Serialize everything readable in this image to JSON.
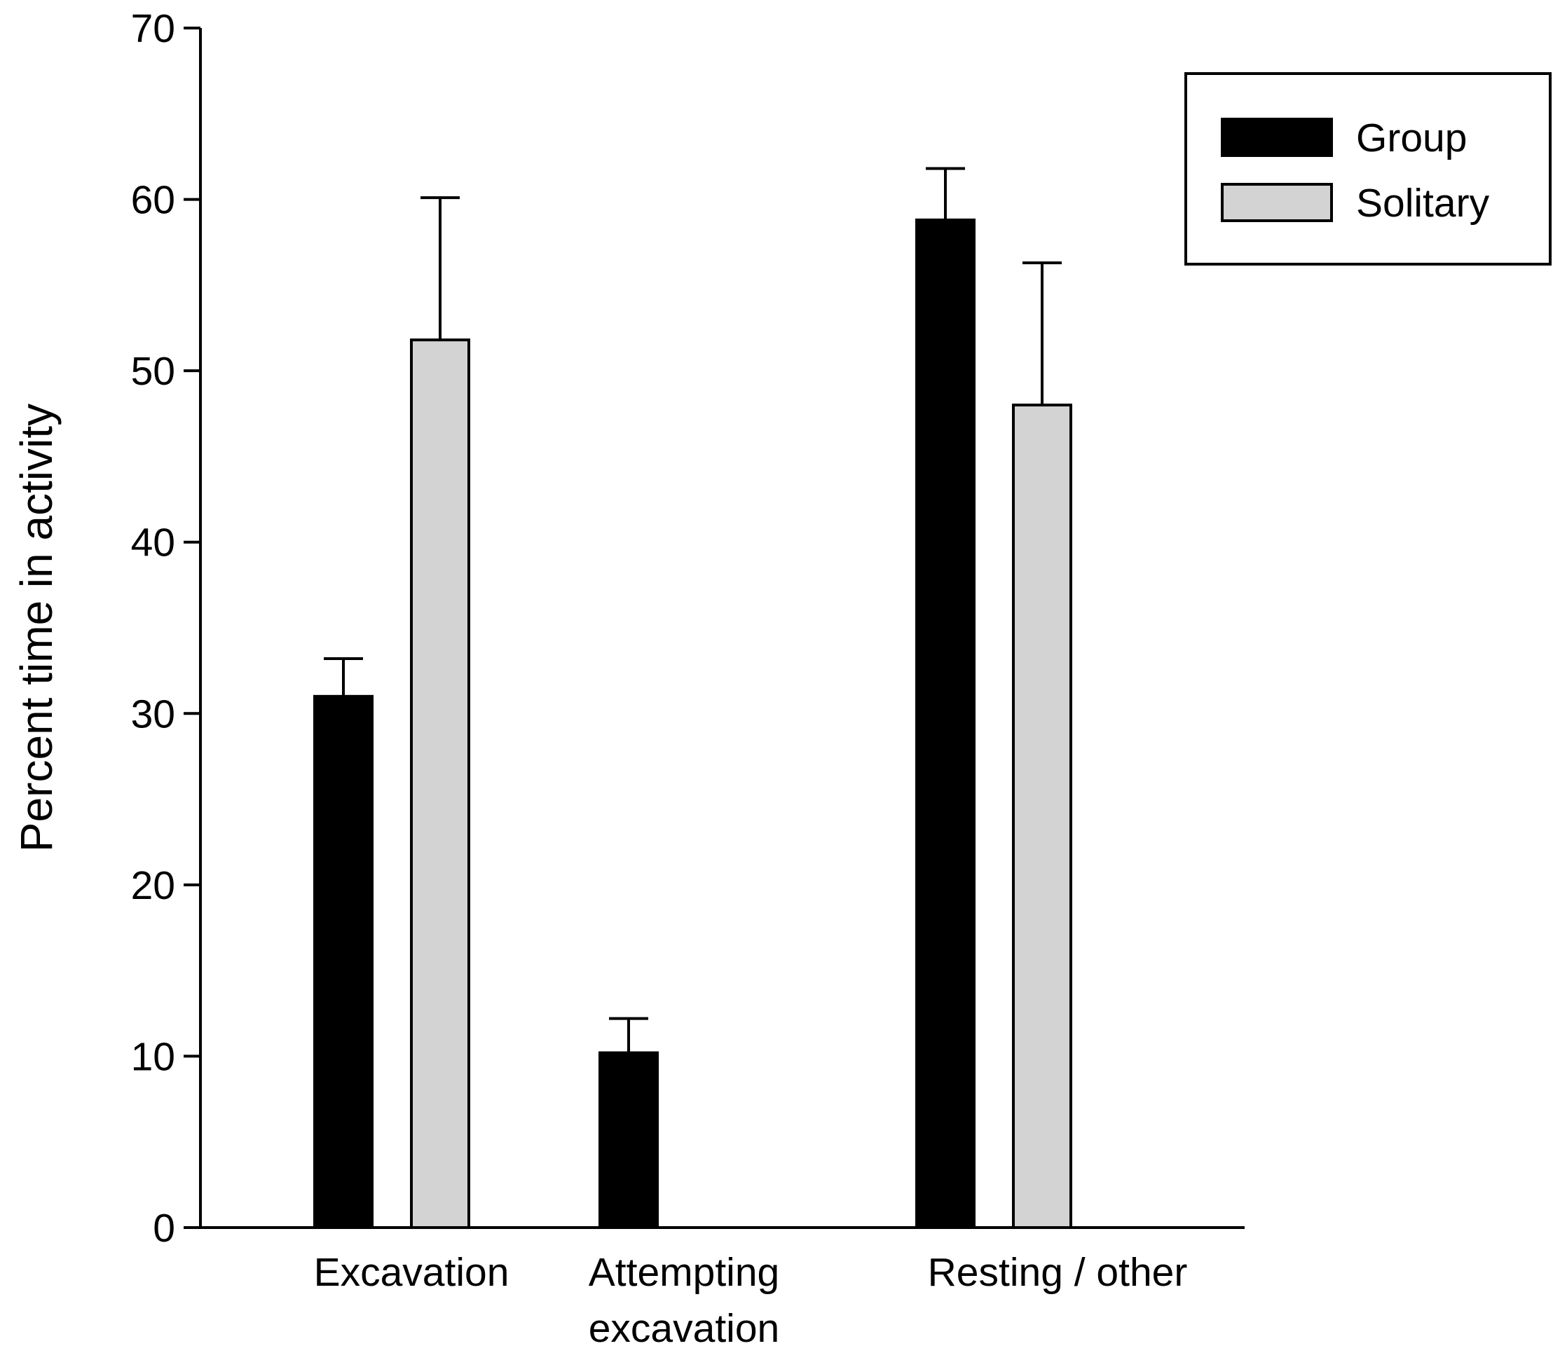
{
  "chart_data": {
    "type": "bar",
    "title": "",
    "xlabel": "",
    "ylabel": "Percent time in activity",
    "ylim": [
      0,
      70
    ],
    "yticks": [
      "0",
      "10",
      "20",
      "30",
      "40",
      "50",
      "60",
      "70"
    ],
    "grid": false,
    "legend_position": "top-right",
    "categories": [
      [
        "Excavation"
      ],
      [
        "Attempting",
        "excavation"
      ],
      [
        "Resting / other"
      ]
    ],
    "series": [
      {
        "name": "Group",
        "color": "#000000",
        "values": [
          31,
          10.2,
          58.8
        ],
        "error_upper": [
          2.2,
          2.0,
          3.0
        ]
      },
      {
        "name": "Solitary",
        "color": "#d3d3d3",
        "values": [
          51.8,
          null,
          48
        ],
        "error_upper": [
          8.3,
          null,
          8.3
        ]
      }
    ]
  }
}
